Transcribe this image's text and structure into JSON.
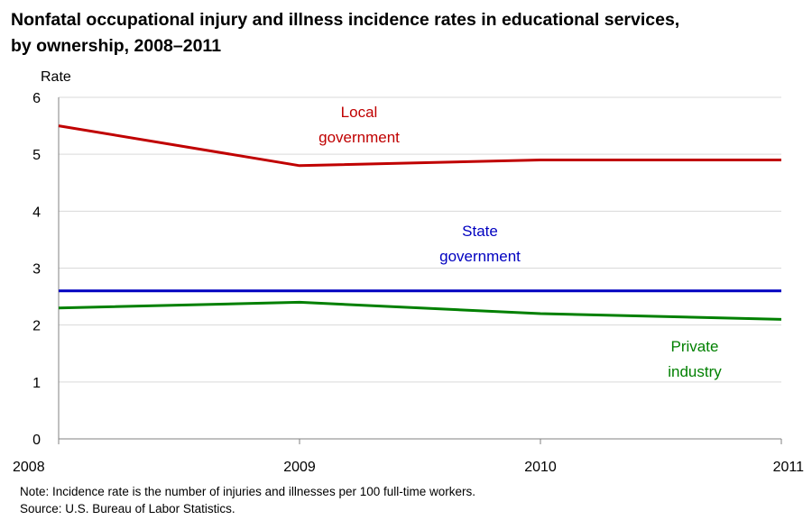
{
  "chart_data": {
    "type": "line",
    "title": [
      "Nonfatal occupational injury and illness incidence rates in educational services,",
      "by ownership, 2008–2011"
    ],
    "ylabel": "Rate",
    "xlabel": "",
    "x": [
      "2008",
      "2009",
      "2010",
      "2011"
    ],
    "ylim": [
      0,
      6
    ],
    "yticks": [
      0,
      1,
      2,
      3,
      4,
      5,
      6
    ],
    "grid": true,
    "series": [
      {
        "name_lines": [
          "Local",
          "government"
        ],
        "color": "#c00000",
        "values": [
          5.5,
          4.8,
          4.9,
          4.9
        ]
      },
      {
        "name_lines": [
          "State",
          "government"
        ],
        "color": "#0000c0",
        "values": [
          2.6,
          2.6,
          2.6,
          2.6
        ]
      },
      {
        "name_lines": [
          "Private",
          "industry"
        ],
        "color": "#008000",
        "values": [
          2.3,
          2.4,
          2.2,
          2.1
        ]
      }
    ]
  },
  "notes": {
    "note": "Note: Incidence rate is the number of injuries and illnesses per 100 full-time workers.",
    "source": "Source: U.S. Bureau of Labor Statistics."
  }
}
